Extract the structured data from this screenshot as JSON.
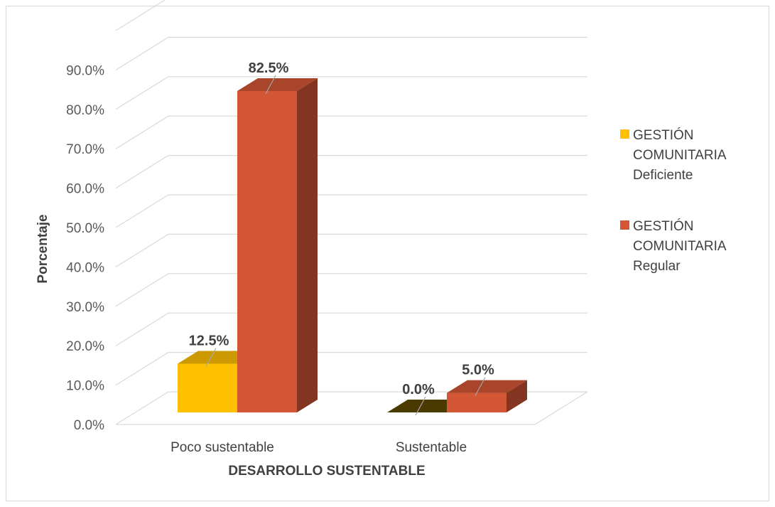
{
  "chart_data": {
    "type": "bar",
    "style": "3d-clustered-column",
    "categories": [
      "Poco sustentable",
      "Sustentable"
    ],
    "series": [
      {
        "name": "GESTIÓN COMUNITARIA Deficiente",
        "name_lines": [
          "GESTIÓN",
          "COMUNITARIA",
          "Deficiente"
        ],
        "values": [
          12.5,
          0.0
        ],
        "color": "#FFC000",
        "labels": [
          "12.5%",
          "0.0%"
        ]
      },
      {
        "name": "GESTIÓN COMUNITARIA Regular",
        "name_lines": [
          "GESTIÓN",
          "COMUNITARIA",
          "Regular"
        ],
        "values": [
          82.5,
          5.0
        ],
        "color": "#D35635",
        "labels": [
          "82.5%",
          "5.0%"
        ]
      }
    ],
    "xlabel": "DESARROLLO SUSTENTABLE",
    "ylabel": "Porcentaje",
    "ylim": [
      0,
      90
    ],
    "yticks": [
      "0.0%",
      "10.0%",
      "20.0%",
      "30.0%",
      "40.0%",
      "50.0%",
      "60.0%",
      "70.0%",
      "80.0%",
      "90.0%"
    ],
    "grid": true,
    "legend_position": "right"
  }
}
